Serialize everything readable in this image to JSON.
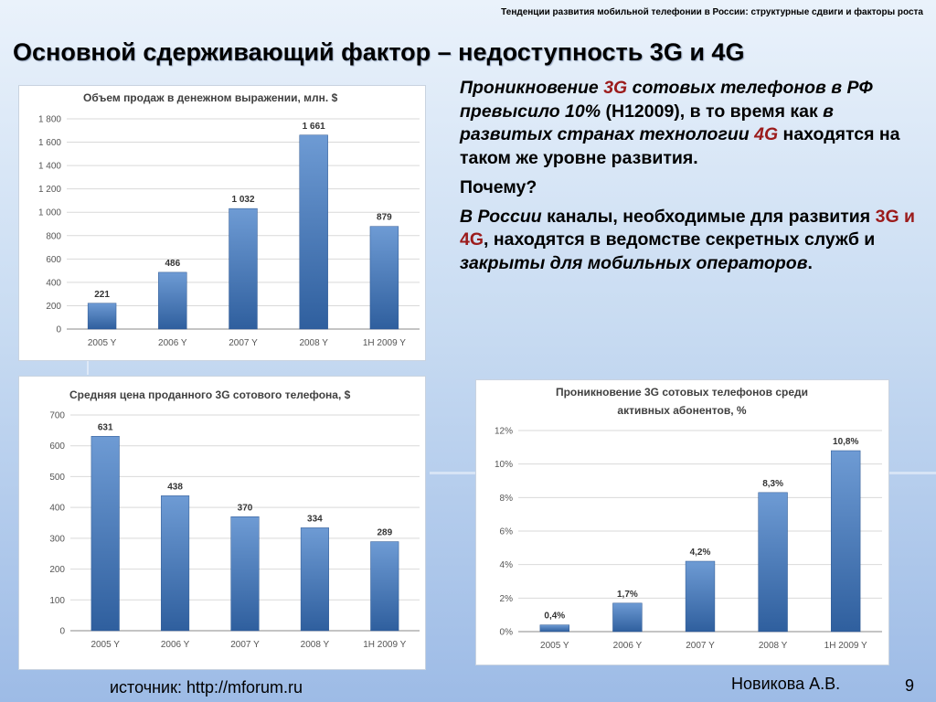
{
  "header": {
    "caption": "Тенденции развития мобильной телефонии в России: структурные сдвиги и факторы роста",
    "title": "Основной сдерживающий фактор – недоступность 3G и 4G"
  },
  "text": {
    "p1": [
      {
        "t": "Проникновение ",
        "it": true
      },
      {
        "t": "3G",
        "it": true,
        "hl": true
      },
      {
        "t": " сотовых телефонов в РФ превысило 10%",
        "it": true
      },
      {
        "t": " (Н12009), в то время как "
      },
      {
        "t": "в развитых странах технологии ",
        "it": true
      },
      {
        "t": "4G",
        "it": true,
        "hl": true
      },
      {
        "t": " находятся на таком же уровне развития."
      }
    ],
    "p2": [
      {
        "t": "Почему?"
      }
    ],
    "p3": [
      {
        "t": "В России",
        "it": true
      },
      {
        "t": " каналы, необходимые для развития "
      },
      {
        "t": "3G и 4G",
        "hl": true
      },
      {
        "t": ", находятся в ведомстве секретных служб и "
      },
      {
        "t": "закрыты для мобильных операторов",
        "it": true
      },
      {
        "t": "."
      }
    ]
  },
  "footer": {
    "source": "источник: http://mforum.ru",
    "author": "Новикова А.В.",
    "page": "9"
  },
  "colors": {
    "bar_top": "#6e9bd4",
    "bar_bottom": "#2f5f9e",
    "highlight": "#9b1b1b",
    "grid": "#d9d9d9"
  },
  "chart_data": [
    {
      "type": "bar",
      "title": "Объем продаж в денежном выражении, млн. $",
      "categories": [
        "2005 Y",
        "2006 Y",
        "2007 Y",
        "2008 Y",
        "1H 2009 Y"
      ],
      "values": [
        221,
        486,
        1032,
        1661,
        879
      ],
      "value_labels": [
        "221",
        "486",
        "1 032",
        "1 661",
        "879"
      ],
      "ylim": [
        0,
        1800
      ],
      "yticks": [
        0,
        200,
        400,
        600,
        800,
        1000,
        1200,
        1400,
        1600,
        1800
      ],
      "ytick_labels": [
        "0",
        "200",
        "400",
        "600",
        "800",
        "1 000",
        "1 200",
        "1 400",
        "1 600",
        "1 800"
      ],
      "grid": true
    },
    {
      "type": "bar",
      "title": "Средняя цена проданного 3G сотового телефона, $",
      "categories": [
        "2005 Y",
        "2006 Y",
        "2007 Y",
        "2008 Y",
        "1H 2009 Y"
      ],
      "values": [
        631,
        438,
        370,
        334,
        289
      ],
      "value_labels": [
        "631",
        "438",
        "370",
        "334",
        "289"
      ],
      "ylim": [
        0,
        700
      ],
      "yticks": [
        0,
        100,
        200,
        300,
        400,
        500,
        600,
        700
      ],
      "ytick_labels": [
        "0",
        "100",
        "200",
        "300",
        "400",
        "500",
        "600",
        "700"
      ],
      "grid": true
    },
    {
      "type": "bar",
      "title": "Проникновение 3G сотовых телефонов среди активных абонентов, %",
      "categories": [
        "2005 Y",
        "2006 Y",
        "2007 Y",
        "2008 Y",
        "1H 2009 Y"
      ],
      "values": [
        0.4,
        1.7,
        4.2,
        8.3,
        10.8
      ],
      "value_labels": [
        "0,4%",
        "1,7%",
        "4,2%",
        "8,3%",
        "10,8%"
      ],
      "ylim": [
        0,
        12
      ],
      "yticks": [
        0,
        2,
        4,
        6,
        8,
        10,
        12
      ],
      "ytick_labels": [
        "0%",
        "2%",
        "4%",
        "6%",
        "8%",
        "10%",
        "12%"
      ],
      "grid": true
    }
  ]
}
